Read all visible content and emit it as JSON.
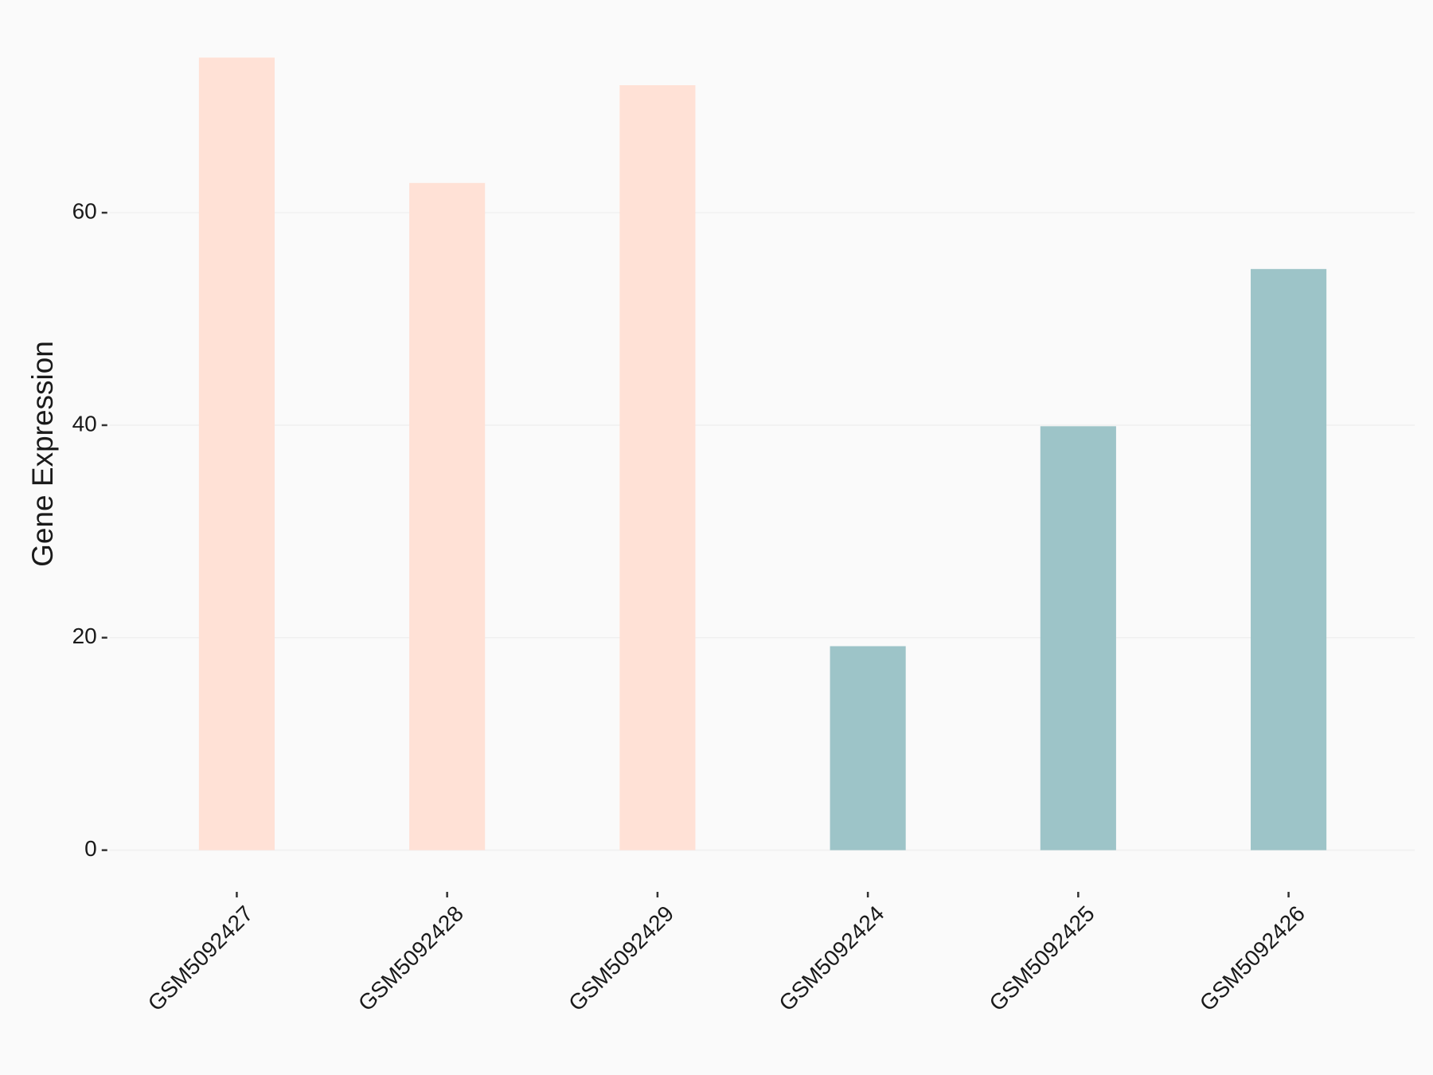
{
  "chart_data": {
    "type": "bar",
    "y_label": "Gene Expression",
    "categories": [
      "GSM5092427",
      "GSM5092428",
      "GSM5092429",
      "GSM5092424",
      "GSM5092425",
      "GSM5092426"
    ],
    "values": [
      74.6,
      62.8,
      72.0,
      19.2,
      39.9,
      54.7
    ],
    "colors": [
      "#ffe1d6",
      "#ffe1d6",
      "#ffe1d6",
      "#9dc4c8",
      "#9dc4c8",
      "#9dc4c8"
    ],
    "ylim": [
      -3.7,
      78.3
    ],
    "yticks": [
      0,
      20,
      40,
      60
    ],
    "grid": true
  }
}
